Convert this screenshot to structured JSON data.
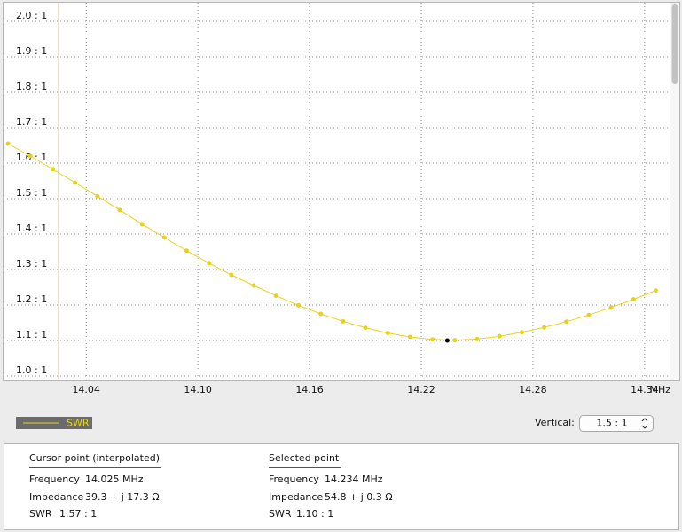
{
  "chart_data": {
    "type": "line",
    "series_name": "SWR",
    "color": "#e8d21d",
    "x": [
      13.998,
      14.01,
      14.022,
      14.034,
      14.046,
      14.058,
      14.07,
      14.082,
      14.094,
      14.106,
      14.118,
      14.13,
      14.142,
      14.154,
      14.166,
      14.178,
      14.19,
      14.202,
      14.214,
      14.226,
      14.238,
      14.25,
      14.262,
      14.274,
      14.286,
      14.298,
      14.31,
      14.322,
      14.334,
      14.346
    ],
    "values": [
      1.655,
      1.62,
      1.583,
      1.545,
      1.507,
      1.468,
      1.428,
      1.39,
      1.353,
      1.318,
      1.285,
      1.255,
      1.226,
      1.199,
      1.175,
      1.154,
      1.136,
      1.121,
      1.11,
      1.103,
      1.101,
      1.104,
      1.112,
      1.123,
      1.137,
      1.153,
      1.172,
      1.193,
      1.216,
      1.241
    ],
    "xlim": [
      13.9956,
      14.3534
    ],
    "ylim": [
      0.99,
      2.0525
    ],
    "xticks": [
      14.04,
      {
        "value": 14.1,
        "label": "14.10"
      },
      14.16,
      14.22,
      14.28,
      14.34
    ],
    "yticks": [
      {
        "value": 1.0,
        "label": "1.0 : 1"
      },
      {
        "value": 1.1,
        "label": "1.1 : 1"
      },
      {
        "value": 1.2,
        "label": "1.2 : 1"
      },
      {
        "value": 1.3,
        "label": "1.3 : 1"
      },
      {
        "value": 1.4,
        "label": "1.4 : 1"
      },
      {
        "value": 1.5,
        "label": "1.5 : 1"
      },
      {
        "value": 1.6,
        "label": "1.6 : 1"
      },
      {
        "value": 1.7,
        "label": "1.7 : 1"
      },
      {
        "value": 1.8,
        "label": "1.8 : 1"
      },
      {
        "value": 1.9,
        "label": "1.9 : 1"
      },
      {
        "value": 2.0,
        "label": "2.0 : 1"
      }
    ],
    "x_unit": "MHz",
    "grid": true,
    "cursor_x": 14.025,
    "selected": {
      "x": 14.234,
      "y": 1.1
    }
  },
  "controls": {
    "vertical_label": "Vertical:",
    "vertical_value": "1.5 : 1"
  },
  "cursor_panel": {
    "title": "Cursor point (interpolated)",
    "frequency_label": "Frequency",
    "frequency": "14.025 MHz",
    "impedance_label": "Impedance",
    "impedance": "39.3 + j 17.3 Ω",
    "swr_label": "SWR",
    "swr": "1.57 : 1"
  },
  "selected_panel": {
    "title": "Selected point",
    "frequency_label": "Frequency",
    "frequency": "14.234 MHz",
    "impedance_label": "Impedance",
    "impedance": "54.8 + j 0.3 Ω",
    "swr_label": "SWR",
    "swr": "1.10 : 1"
  }
}
